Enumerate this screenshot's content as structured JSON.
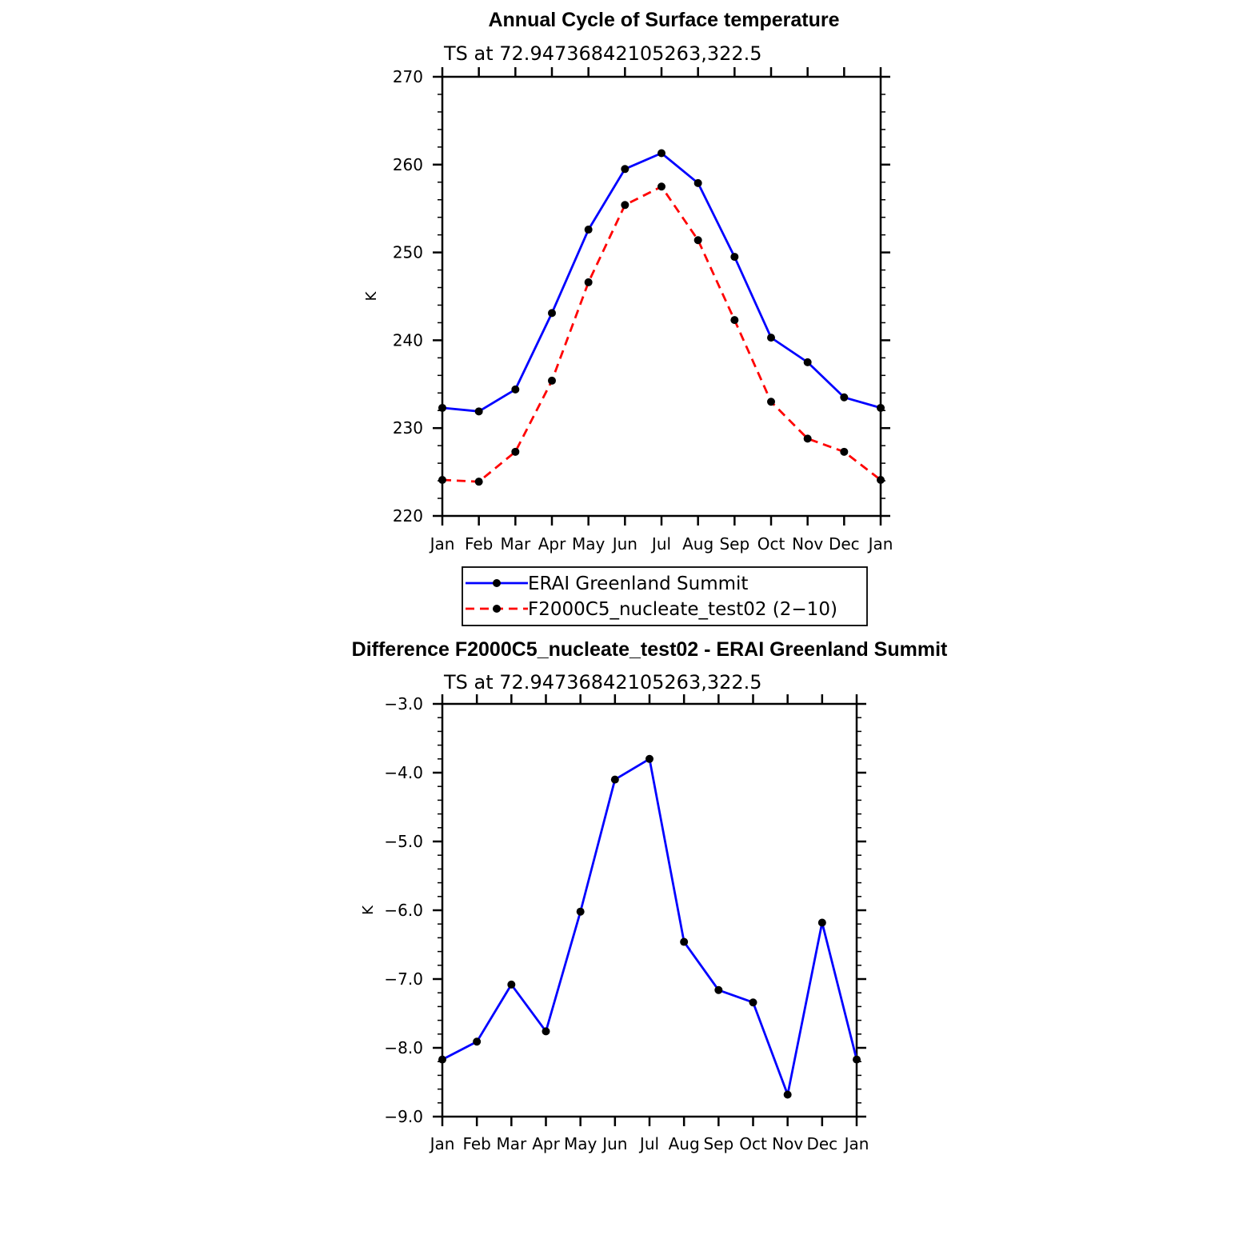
{
  "chart_data": [
    {
      "type": "line",
      "title": "Annual Cycle of Surface temperature",
      "subtitle": "TS at 72.94736842105263,322.5",
      "xlabel": "",
      "ylabel": "K",
      "categories": [
        "Jan",
        "Feb",
        "Mar",
        "Apr",
        "May",
        "Jun",
        "Jul",
        "Aug",
        "Sep",
        "Oct",
        "Nov",
        "Dec",
        "Jan"
      ],
      "ylim": [
        220,
        270
      ],
      "yticks": [
        220,
        230,
        240,
        250,
        260,
        270
      ],
      "ytick_labels": [
        "220",
        "230",
        "240",
        "250",
        "260",
        "270"
      ],
      "series": [
        {
          "name": "ERAI Greenland Summit",
          "color": "#0000ff",
          "dash": "solid",
          "values": [
            232.3,
            231.9,
            234.4,
            243.1,
            252.6,
            259.5,
            261.3,
            257.9,
            249.5,
            240.3,
            237.5,
            233.5,
            232.3
          ]
        },
        {
          "name": "F2000C5_nucleate_test02 (2−10)",
          "color": "#ff0000",
          "dash": "dashed",
          "values": [
            224.1,
            223.9,
            227.3,
            235.4,
            246.6,
            255.4,
            257.5,
            251.4,
            242.3,
            233.0,
            228.8,
            227.3,
            224.1
          ]
        }
      ],
      "legend_position": "below"
    },
    {
      "type": "line",
      "title": "Difference F2000C5_nucleate_test02 - ERAI Greenland Summit",
      "subtitle": "TS at 72.94736842105263,322.5",
      "xlabel": "",
      "ylabel": "K",
      "categories": [
        "Jan",
        "Feb",
        "Mar",
        "Apr",
        "May",
        "Jun",
        "Jul",
        "Aug",
        "Sep",
        "Oct",
        "Nov",
        "Dec",
        "Jan"
      ],
      "ylim": [
        -9.0,
        -3.0
      ],
      "yticks": [
        -9.0,
        -8.0,
        -7.0,
        -6.0,
        -5.0,
        -4.0,
        -3.0
      ],
      "ytick_labels": [
        "−9.0",
        "−8.0",
        "−7.0",
        "−6.0",
        "−5.0",
        "−4.0",
        "−3.0"
      ],
      "series": [
        {
          "name": "Difference",
          "color": "#0000ff",
          "dash": "solid",
          "values": [
            -8.17,
            -7.91,
            -7.08,
            -7.76,
            -6.02,
            -4.1,
            -3.8,
            -6.46,
            -7.16,
            -7.34,
            -8.68,
            -6.18,
            -8.17
          ]
        }
      ]
    }
  ]
}
